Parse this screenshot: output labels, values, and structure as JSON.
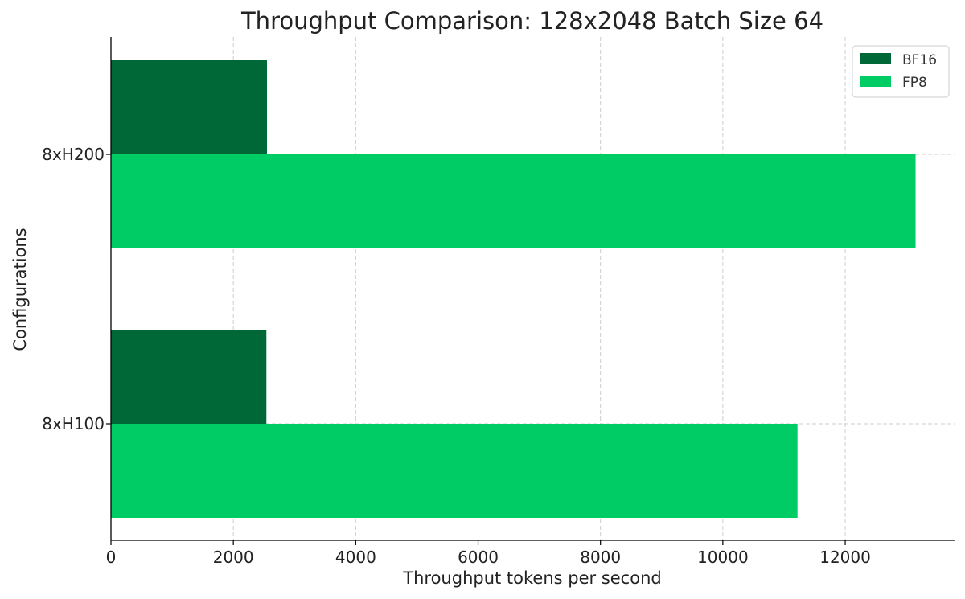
{
  "chart_data": {
    "type": "bar",
    "orientation": "horizontal",
    "title": "Throughput Comparison: 128x2048 Batch Size 64",
    "xlabel": "Throughput tokens per second",
    "ylabel": "Configurations",
    "categories": [
      "8xH100",
      "8xH200"
    ],
    "series": [
      {
        "name": "BF16",
        "color": "#006837",
        "values": [
          2540,
          2550
        ]
      },
      {
        "name": "FP8",
        "color": "#00cc66",
        "values": [
          11220,
          13150
        ]
      }
    ],
    "xlim": [
      0,
      13800
    ],
    "xticks": [
      0,
      2000,
      4000,
      6000,
      8000,
      10000,
      12000
    ],
    "grid": true,
    "legend_position": "top-right"
  }
}
